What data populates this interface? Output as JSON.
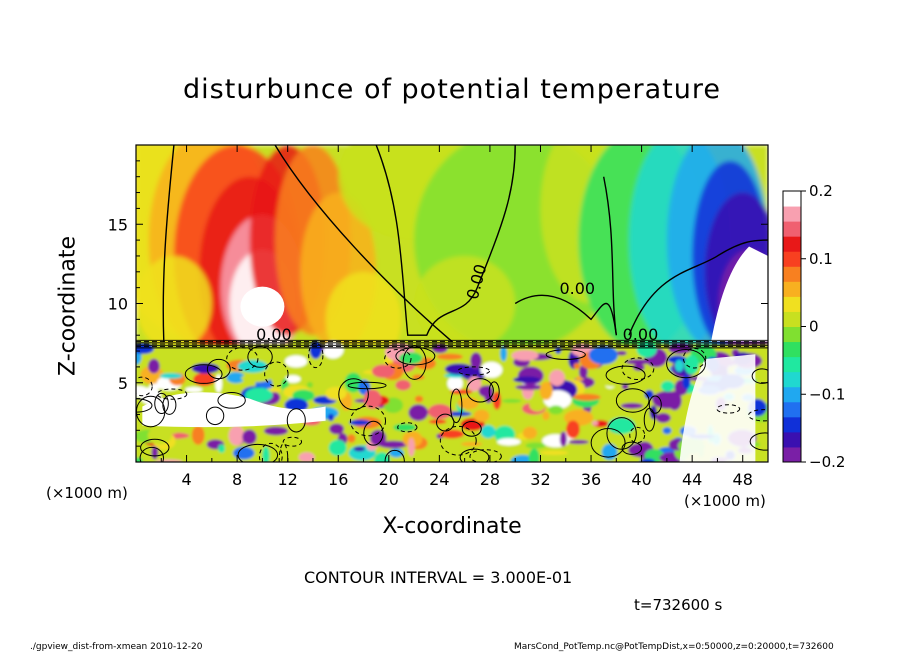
{
  "chart_data": {
    "type": "heatmap",
    "title": "disturbunce of potential temperature",
    "xlabel": "X-coordinate",
    "ylabel": "Z-coordinate",
    "x_unit_label": "(×1000 m)",
    "xlim": [
      0,
      50
    ],
    "ylim": [
      0,
      20
    ],
    "x_ticks": [
      4,
      8,
      12,
      16,
      20,
      24,
      28,
      32,
      36,
      40,
      44,
      48
    ],
    "y_ticks": [
      5,
      10,
      15
    ],
    "colorbar": {
      "range": [
        -0.2,
        0.2
      ],
      "ticks": [
        {
          "value": 0.2,
          "label": "0.2"
        },
        {
          "value": 0.1,
          "label": "0.1"
        },
        {
          "value": 0,
          "label": "0"
        },
        {
          "value": -0.1,
          "label": "−0.1"
        },
        {
          "value": -0.2,
          "label": "−0.2"
        }
      ],
      "colors": [
        "#7a1fa6",
        "#3a10b0",
        "#1030d8",
        "#2070f0",
        "#20a8f0",
        "#20d8d0",
        "#20e8a0",
        "#30e060",
        "#80e030",
        "#c8e020",
        "#f0e020",
        "#f8b020",
        "#f88020",
        "#f84020",
        "#e81818",
        "#f06070",
        "#f8a0b0",
        "#ffffff"
      ]
    },
    "contour_labels": [
      "0.00",
      "0.00",
      "0.00",
      "0.00"
    ],
    "contour_interval_label": "CONTOUR INTERVAL = 3.000E-01",
    "time_label": "t=732600 s"
  },
  "footer": {
    "left": "./gpview_dist-from-xmean  2010-12-20",
    "right": "MarsCond_PotTemp.nc@PotTempDist,x=0:50000,z=0:20000,t=732600"
  }
}
